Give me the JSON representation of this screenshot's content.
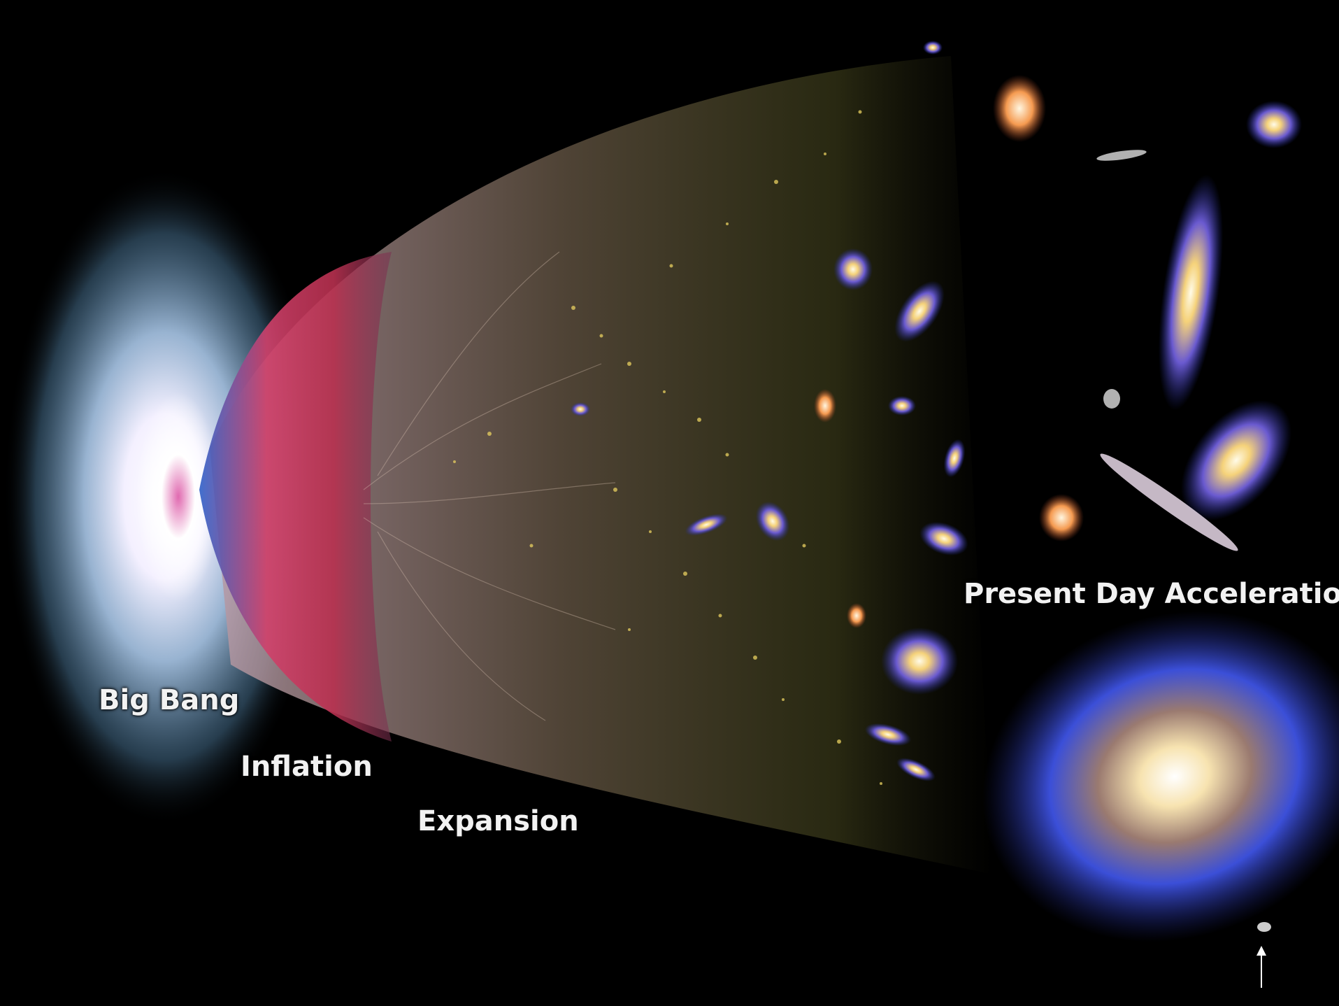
{
  "labels": {
    "big_bang": "Big Bang",
    "inflation": "Inflation",
    "expansion": "Expansion",
    "present_day": "Present Day Acceleration"
  },
  "colors": {
    "background": "#000000",
    "glow_blue": "#7fb6d9",
    "inflation_red": "#d23a5a",
    "inflation_blue": "#2f6fd0",
    "expansion_haze": "#b79aa8",
    "galaxy_gold": "#f5d27a",
    "galaxy_blue": "#3b4fd8"
  },
  "icons": {
    "pointer": "up-arrow-icon"
  }
}
